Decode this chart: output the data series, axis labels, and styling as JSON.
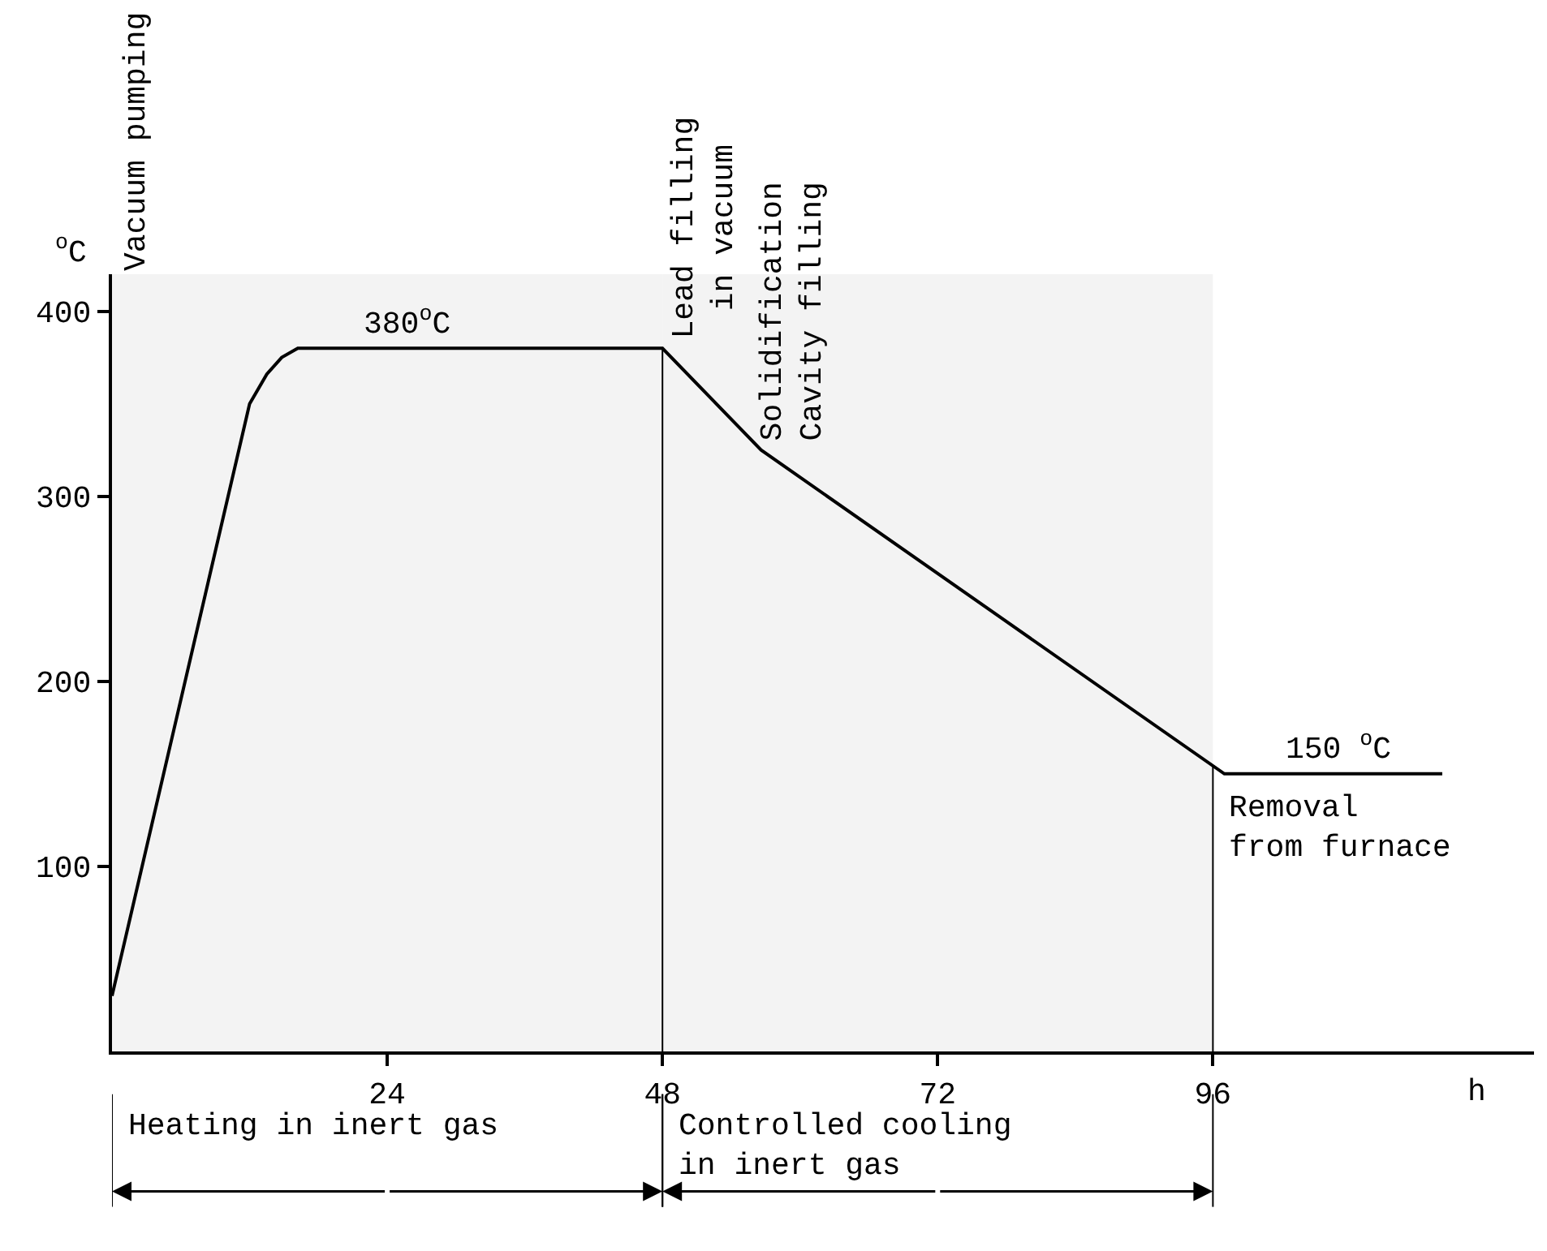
{
  "chart_data": {
    "type": "line",
    "xlabel": "h",
    "ylabel": "$^{o}$C",
    "x": [
      0,
      12,
      13.5,
      14.8,
      16.2,
      48,
      56.6,
      97,
      116
    ],
    "series": [
      {
        "color": "#000000",
        "values": [
          30,
          350,
          366,
          375,
          380,
          380,
          325,
          150,
          150
        ]
      }
    ],
    "xlim": [
      0,
      124
    ],
    "ylim": [
      0,
      420
    ],
    "xticks": [
      24,
      48,
      72,
      96
    ],
    "yticks": [
      100,
      200,
      300,
      400
    ],
    "grid": false,
    "marker": "none",
    "line_style": "solid",
    "ref_lines": [
      {
        "axis": "x",
        "value": 48,
        "color": "#000000"
      },
      {
        "axis": "x",
        "value": 96,
        "color": "#000000"
      }
    ],
    "bands": [
      {
        "axis": "x",
        "from": 0,
        "to": 48,
        "label": "Heating in inert gas",
        "color": "#f3f3f3"
      },
      {
        "axis": "x",
        "from": 48,
        "to": 96,
        "label": "Controlled cooling\nin inert gas",
        "color": "#f3f3f3"
      }
    ],
    "annotations": [
      "Vacuum pumping",
      {
        "text": "380$^{o}$C",
        "x": 25.7,
        "y": 380
      },
      {
        "text": "Lead filling\nin vacuum",
        "x": 48,
        "y": 380
      },
      {
        "text": "Solidification\nCavity filling",
        "x": 56.6,
        "y": 325
      },
      {
        "text": "150 $^{o}$C",
        "x": 107,
        "y": 150
      },
      {
        "text": "Removal\nfrom furnace",
        "x": 96,
        "y": 150
      }
    ]
  }
}
